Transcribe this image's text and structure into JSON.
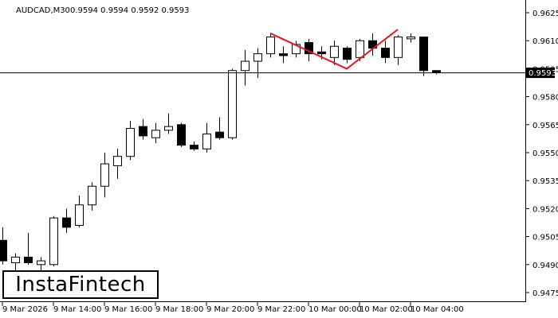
{
  "header": {
    "symbol": "AUDCAD,M30",
    "ohlc": "0.9594 0.9594 0.9592 0.9593"
  },
  "logo": {
    "text": "InstaFintech"
  },
  "chart_data": {
    "type": "candlestick",
    "symbol": "AUDCAD",
    "timeframe": "M30",
    "ylim": [
      0.947,
      0.963
    ],
    "y_ticks": [
      "0.9625",
      "0.9610",
      "0.9595",
      "0.9580",
      "0.9565",
      "0.9550",
      "0.9535",
      "0.9520",
      "0.9505",
      "0.9490",
      "0.9475"
    ],
    "x_ticks": [
      "9 Mar 2026",
      "9 Mar 14:00",
      "9 Mar 16:00",
      "9 Mar 18:00",
      "9 Mar 20:00",
      "9 Mar 22:00",
      "10 Mar 00:00",
      "10 Mar 02:00",
      "10 Mar 04:00"
    ],
    "current_price": "0.9593",
    "candles": [
      {
        "o": 0.9503,
        "h": 0.951,
        "l": 0.949,
        "c": 0.9492
      },
      {
        "o": 0.9491,
        "h": 0.9496,
        "l": 0.9487,
        "c": 0.9494
      },
      {
        "o": 0.9494,
        "h": 0.9507,
        "l": 0.949,
        "c": 0.9491
      },
      {
        "o": 0.949,
        "h": 0.9494,
        "l": 0.9487,
        "c": 0.9492
      },
      {
        "o": 0.949,
        "h": 0.9516,
        "l": 0.9489,
        "c": 0.9515
      },
      {
        "o": 0.9515,
        "h": 0.952,
        "l": 0.9507,
        "c": 0.951
      },
      {
        "o": 0.9511,
        "h": 0.9527,
        "l": 0.951,
        "c": 0.9522
      },
      {
        "o": 0.9522,
        "h": 0.9534,
        "l": 0.9519,
        "c": 0.9532
      },
      {
        "o": 0.9532,
        "h": 0.955,
        "l": 0.9526,
        "c": 0.9544
      },
      {
        "o": 0.9543,
        "h": 0.9552,
        "l": 0.9536,
        "c": 0.9548
      },
      {
        "o": 0.9548,
        "h": 0.9567,
        "l": 0.9546,
        "c": 0.9563
      },
      {
        "o": 0.9564,
        "h": 0.9568,
        "l": 0.9557,
        "c": 0.9559
      },
      {
        "o": 0.9558,
        "h": 0.9566,
        "l": 0.9555,
        "c": 0.9562
      },
      {
        "o": 0.9562,
        "h": 0.9571,
        "l": 0.956,
        "c": 0.9564
      },
      {
        "o": 0.9565,
        "h": 0.9566,
        "l": 0.9553,
        "c": 0.9554
      },
      {
        "o": 0.9554,
        "h": 0.9556,
        "l": 0.9551,
        "c": 0.9552
      },
      {
        "o": 0.9552,
        "h": 0.9566,
        "l": 0.955,
        "c": 0.956
      },
      {
        "o": 0.9561,
        "h": 0.9569,
        "l": 0.9557,
        "c": 0.9558
      },
      {
        "o": 0.9558,
        "h": 0.9595,
        "l": 0.9557,
        "c": 0.9594
      },
      {
        "o": 0.9594,
        "h": 0.9605,
        "l": 0.9586,
        "c": 0.9599
      },
      {
        "o": 0.9599,
        "h": 0.9606,
        "l": 0.959,
        "c": 0.9603
      },
      {
        "o": 0.9603,
        "h": 0.9614,
        "l": 0.9601,
        "c": 0.9612
      },
      {
        "o": 0.9603,
        "h": 0.9607,
        "l": 0.9598,
        "c": 0.9602
      },
      {
        "o": 0.9603,
        "h": 0.961,
        "l": 0.9601,
        "c": 0.9608
      },
      {
        "o": 0.9609,
        "h": 0.9611,
        "l": 0.9599,
        "c": 0.9603
      },
      {
        "o": 0.9604,
        "h": 0.9607,
        "l": 0.96,
        "c": 0.9603
      },
      {
        "o": 0.9601,
        "h": 0.961,
        "l": 0.9597,
        "c": 0.9607
      },
      {
        "o": 0.9606,
        "h": 0.9607,
        "l": 0.9598,
        "c": 0.96
      },
      {
        "o": 0.9601,
        "h": 0.9611,
        "l": 0.9599,
        "c": 0.961
      },
      {
        "o": 0.961,
        "h": 0.9614,
        "l": 0.9602,
        "c": 0.9606
      },
      {
        "o": 0.9606,
        "h": 0.961,
        "l": 0.9598,
        "c": 0.9601
      },
      {
        "o": 0.9601,
        "h": 0.9613,
        "l": 0.9597,
        "c": 0.9612
      },
      {
        "o": 0.9611,
        "h": 0.9614,
        "l": 0.9609,
        "c": 0.9612
      },
      {
        "o": 0.9612,
        "h": 0.9612,
        "l": 0.9591,
        "c": 0.9594
      },
      {
        "o": 0.9594,
        "h": 0.9594,
        "l": 0.9592,
        "c": 0.9593
      }
    ],
    "pattern": {
      "name": "double top",
      "color": "#e8141e",
      "candle_points": [
        21,
        27,
        31
      ],
      "prices": [
        0.9614,
        0.9595,
        0.9616
      ]
    },
    "colors": {
      "bull_fill": "#ffffff",
      "bear_fill": "#000000",
      "stroke": "#000000"
    }
  }
}
